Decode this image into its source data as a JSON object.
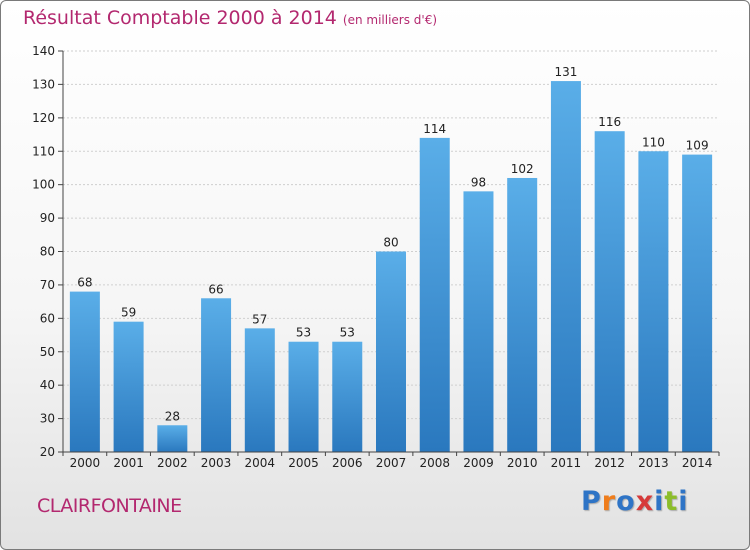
{
  "title": "Résultat Comptable 2000 à 2014",
  "subtitle": "(en milliers d'€)",
  "commune": "CLAIRFONTAINE",
  "brand": {
    "letters": [
      "P",
      "r",
      "o",
      "x",
      "i",
      "t",
      "i"
    ]
  },
  "colors": {
    "title": "#b3286f",
    "bar_top": "#5aaee8",
    "bar_bottom": "#2a78be",
    "grid": "#cfcfcf",
    "brand_letters": [
      "#2e74c6",
      "#ef7d1c",
      "#2e74c6",
      "#d63a3a",
      "#2e74c6",
      "#8cbd2a",
      "#2e74c6"
    ]
  },
  "chart_data": {
    "type": "bar",
    "categories": [
      "2000",
      "2001",
      "2002",
      "2003",
      "2004",
      "2005",
      "2006",
      "2007",
      "2008",
      "2009",
      "2010",
      "2011",
      "2012",
      "2013",
      "2014"
    ],
    "values": [
      68,
      59,
      28,
      66,
      57,
      53,
      53,
      80,
      114,
      98,
      102,
      131,
      116,
      110,
      109
    ],
    "ylim": [
      20,
      140
    ],
    "yticks": [
      20,
      30,
      40,
      50,
      60,
      70,
      80,
      90,
      100,
      110,
      120,
      130,
      140
    ],
    "grid": true,
    "xlabel": "",
    "ylabel": ""
  }
}
